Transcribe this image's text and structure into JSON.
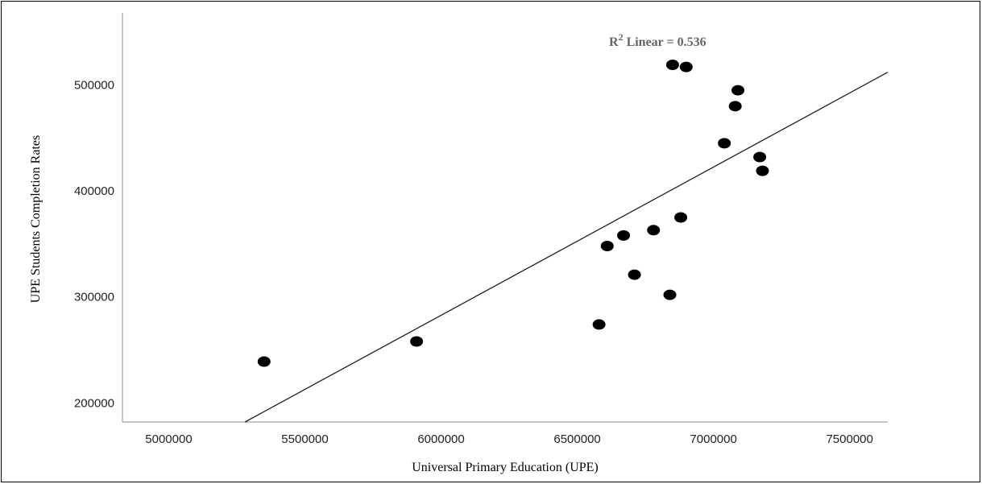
{
  "chart_data": {
    "type": "scatter",
    "xlabel": "Universal Primary Education (UPE)",
    "ylabel": "UPE Students Completion Rates",
    "xlim": [
      4830000,
      7640000
    ],
    "ylim": [
      182000,
      568000
    ],
    "x_ticks": [
      "5000000",
      "5500000",
      "6000000",
      "6500000",
      "7000000",
      "7500000"
    ],
    "y_ticks": [
      "200000",
      "300000",
      "400000",
      "500000"
    ],
    "annotation": {
      "base": "R",
      "sup": "2",
      "text": " Linear = 0.536"
    },
    "fit_line": {
      "x": [
        5280000,
        7640000
      ],
      "y": [
        182000,
        512000
      ]
    },
    "points": [
      {
        "x": 5350000,
        "y": 239000
      },
      {
        "x": 5910000,
        "y": 258000
      },
      {
        "x": 6580000,
        "y": 274000
      },
      {
        "x": 6610000,
        "y": 348000
      },
      {
        "x": 6670000,
        "y": 358000
      },
      {
        "x": 6710000,
        "y": 321000
      },
      {
        "x": 6780000,
        "y": 363000
      },
      {
        "x": 6840000,
        "y": 302000
      },
      {
        "x": 6850000,
        "y": 519000
      },
      {
        "x": 6880000,
        "y": 375000
      },
      {
        "x": 6900000,
        "y": 517000
      },
      {
        "x": 7040000,
        "y": 445000
      },
      {
        "x": 7080000,
        "y": 480000
      },
      {
        "x": 7090000,
        "y": 495000
      },
      {
        "x": 7170000,
        "y": 432000
      },
      {
        "x": 7180000,
        "y": 419000
      }
    ]
  }
}
